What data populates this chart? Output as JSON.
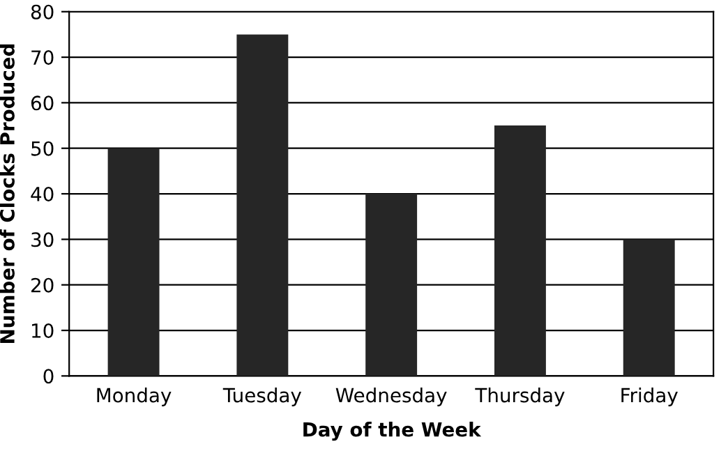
{
  "chart_data": {
    "type": "bar",
    "xlabel": "Day of the Week",
    "ylabel": "Number of Clocks Produced",
    "categories": [
      "Monday",
      "Tuesday",
      "Wednesday",
      "Thursday",
      "Friday"
    ],
    "values": [
      50,
      75,
      40,
      55,
      30
    ],
    "color": "#262626",
    "ylim": [
      0,
      80
    ],
    "yticks": [
      0,
      10,
      20,
      30,
      40,
      50,
      60,
      70,
      80
    ],
    "grid": "y",
    "legend": false
  }
}
